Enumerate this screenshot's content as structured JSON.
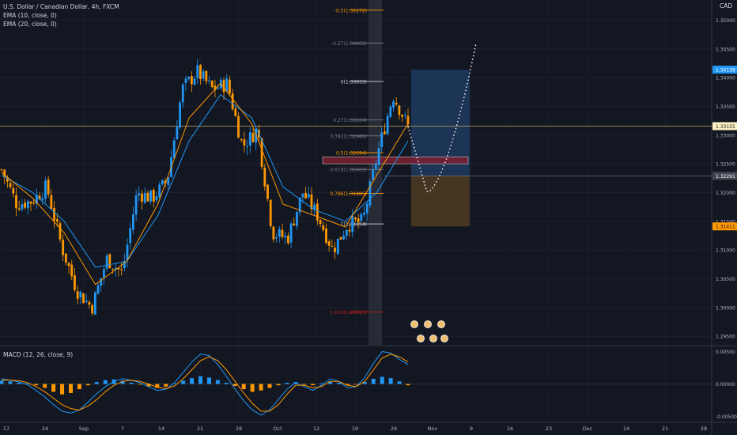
{
  "symbol_title": "U.S. Dollar / Canadian Dollar, 4h, FXCM",
  "indicators": [
    "EMA (10, close, 0)",
    "EMA (20, close, 0)"
  ],
  "currency": "CAD",
  "macd_title": "MACD (12, 26, close, 9)",
  "colors": {
    "background": "#131722",
    "up_candle": "#2196f3",
    "down_candle": "#ff9800",
    "ema10": "#ff9800",
    "ema20": "#2196f3",
    "price_line": "#c8a95c",
    "fib_top": "#ff9800",
    "fib_mid": "#787b86",
    "fib_bottom": "#b71c1c",
    "target_box": "#1f3a5f",
    "stop_box": "#4a3a20",
    "resistance_box": "#7a2030"
  },
  "price_axis": {
    "ticks": [
      "1.35000",
      "1.34500",
      "1.34000",
      "1.33500",
      "1.33000",
      "1.32500",
      "1.32000",
      "1.31500",
      "1.31000",
      "1.30500",
      "1.30000",
      "1.29500"
    ],
    "current_price": "1.33155",
    "target_price": "1.34138",
    "entry_price": "1.32291",
    "stop_price": "1.31411"
  },
  "macd_axis": {
    "ticks": [
      "0.00500",
      "0.00000",
      "-0.00500"
    ]
  },
  "time_axis": {
    "labels": [
      "17",
      "24",
      "Sep",
      "7",
      "14",
      "21",
      "28",
      "Oct",
      "12",
      "19",
      "26",
      "Nov",
      "9",
      "16",
      "23",
      "Dec",
      "14",
      "21",
      "28"
    ]
  },
  "fib_levels": [
    {
      "label": "-0.5(1.35172)",
      "price": 1.35172,
      "tone": "top"
    },
    {
      "label": "-0.27(1.34602)",
      "price": 1.34602,
      "tone": "mid"
    },
    {
      "label": "0(1.33933)",
      "price": 1.33933,
      "tone": "white"
    },
    {
      "label": "0.27(1.33264)",
      "price": 1.33264,
      "tone": "mid"
    },
    {
      "label": "0.382(1.32986)",
      "price": 1.32986,
      "tone": "mid"
    },
    {
      "label": "0.5(1.32694)",
      "price": 1.32694,
      "tone": "top"
    },
    {
      "label": "0.618(1.32402)",
      "price": 1.32402,
      "tone": "mid"
    },
    {
      "label": "0.786(1.31985)",
      "price": 1.31985,
      "tone": "top"
    },
    {
      "label": "1(1.31454)",
      "price": 1.31454,
      "tone": "white"
    },
    {
      "label": "1.618(1.29923)",
      "price": 1.29923,
      "tone": "bottom"
    }
  ],
  "chart_data": {
    "type": "candlestick",
    "ylim": [
      1.2935,
      1.3535
    ],
    "close_series": [
      {
        "date": "Aug 13",
        "close": 1.324
      },
      {
        "date": "Aug 17",
        "close": 1.318
      },
      {
        "date": "Aug 21",
        "close": 1.3185
      },
      {
        "date": "Aug 24",
        "close": 1.321
      },
      {
        "date": "Aug 27",
        "close": 1.3105
      },
      {
        "date": "Aug 31",
        "close": 1.303
      },
      {
        "date": "Sep 3",
        "close": 1.3
      },
      {
        "date": "Sep 7",
        "close": 1.3085
      },
      {
        "date": "Sep 11",
        "close": 1.306
      },
      {
        "date": "Sep 14",
        "close": 1.32
      },
      {
        "date": "Sep 18",
        "close": 1.319
      },
      {
        "date": "Sep 21",
        "close": 1.322
      },
      {
        "date": "Sep 24",
        "close": 1.338
      },
      {
        "date": "Sep 26",
        "close": 1.341
      },
      {
        "date": "Sep 28",
        "close": 1.338
      },
      {
        "date": "Oct 1",
        "close": 1.339
      },
      {
        "date": "Oct 5",
        "close": 1.328
      },
      {
        "date": "Oct 9",
        "close": 1.331
      },
      {
        "date": "Oct 12",
        "close": 1.313
      },
      {
        "date": "Oct 16",
        "close": 1.312
      },
      {
        "date": "Oct 19",
        "close": 1.32
      },
      {
        "date": "Oct 22",
        "close": 1.316
      },
      {
        "date": "Oct 23",
        "close": 1.31
      },
      {
        "date": "Oct 26",
        "close": 1.3145
      },
      {
        "date": "Oct 29",
        "close": 1.315
      },
      {
        "date": "Oct 30",
        "close": 1.327
      },
      {
        "date": "Nov 1",
        "close": 1.337
      },
      {
        "date": "Nov 2",
        "close": 1.3315
      }
    ],
    "ema10": [
      {
        "date": "Aug 13",
        "v": 1.3235
      },
      {
        "date": "Aug 21",
        "v": 1.319
      },
      {
        "date": "Aug 27",
        "v": 1.313
      },
      {
        "date": "Sep 3",
        "v": 1.304
      },
      {
        "date": "Sep 11",
        "v": 1.308
      },
      {
        "date": "Sep 18",
        "v": 1.318
      },
      {
        "date": "Sep 24",
        "v": 1.333
      },
      {
        "date": "Sep 28",
        "v": 1.339
      },
      {
        "date": "Oct 5",
        "v": 1.332
      },
      {
        "date": "Oct 12",
        "v": 1.318
      },
      {
        "date": "Oct 19",
        "v": 1.316
      },
      {
        "date": "Oct 26",
        "v": 1.314
      },
      {
        "date": "Oct 30",
        "v": 1.323
      },
      {
        "date": "Nov 2",
        "v": 1.332
      }
    ],
    "ema20": [
      {
        "date": "Aug 13",
        "v": 1.323
      },
      {
        "date": "Aug 21",
        "v": 1.32
      },
      {
        "date": "Aug 27",
        "v": 1.315
      },
      {
        "date": "Sep 3",
        "v": 1.307
      },
      {
        "date": "Sep 11",
        "v": 1.308
      },
      {
        "date": "Sep 18",
        "v": 1.316
      },
      {
        "date": "Sep 24",
        "v": 1.329
      },
      {
        "date": "Sep 28",
        "v": 1.337
      },
      {
        "date": "Oct 5",
        "v": 1.333
      },
      {
        "date": "Oct 12",
        "v": 1.321
      },
      {
        "date": "Oct 19",
        "v": 1.317
      },
      {
        "date": "Oct 26",
        "v": 1.315
      },
      {
        "date": "Oct 30",
        "v": 1.32
      },
      {
        "date": "Nov 2",
        "v": 1.329
      }
    ],
    "macd_hist": [
      0.0005,
      0.0004,
      0.0002,
      0.0001,
      -0.0002,
      -0.0006,
      -0.0012,
      -0.0016,
      -0.0014,
      -0.0008,
      -0.0002,
      0.0003,
      0.0006,
      0.0007,
      0.0005,
      0.0002,
      -0.0001,
      -0.0004,
      -0.0006,
      -0.0004,
      0.0001,
      0.0005,
      0.0009,
      0.0012,
      0.001,
      0.0006,
      0.0002,
      -0.0003,
      -0.0008,
      -0.0012,
      -0.001,
      -0.0006,
      -0.0002,
      0.0002,
      0.0003,
      -0.0001,
      -0.0002,
      0.0001,
      0.0004,
      0.0002,
      -0.0002,
      -0.0001,
      0.0003,
      0.0008,
      0.0011,
      0.0009,
      0.0004,
      -0.0002
    ],
    "macd_line": [
      0.0008,
      0.0006,
      0.0003,
      -0.0001,
      -0.001,
      -0.002,
      -0.0032,
      -0.0042,
      -0.0045,
      -0.004,
      -0.0028,
      -0.0015,
      -0.0004,
      0.0004,
      0.0008,
      0.0006,
      0.0002,
      -0.0004,
      -0.001,
      -0.0008,
      0.0002,
      0.0018,
      0.0034,
      0.0046,
      0.0044,
      0.003,
      0.0012,
      -0.0008,
      -0.0026,
      -0.004,
      -0.0048,
      -0.004,
      -0.0024,
      -0.0008,
      0.0002,
      -0.0004,
      -0.001,
      -0.0002,
      0.0008,
      0.0004,
      -0.0006,
      -0.0004,
      0.001,
      0.0032,
      0.005,
      0.0048,
      0.0038,
      0.003
    ],
    "signal_line": [
      0.0006,
      0.0006,
      0.0005,
      0.0002,
      -0.0004,
      -0.0012,
      -0.0022,
      -0.0032,
      -0.0038,
      -0.004,
      -0.0034,
      -0.0024,
      -0.0012,
      -0.0002,
      0.0004,
      0.0006,
      0.0004,
      0.0,
      -0.0005,
      -0.0007,
      -0.0003,
      0.0008,
      0.0022,
      0.0036,
      0.0042,
      0.0036,
      0.0022,
      0.0004,
      -0.0014,
      -0.003,
      -0.0042,
      -0.0042,
      -0.0032,
      -0.0016,
      -0.0002,
      -0.0002,
      -0.0006,
      -0.0004,
      0.0004,
      0.0004,
      -0.0002,
      -0.0004,
      0.0004,
      0.0022,
      0.004,
      0.0046,
      0.0042,
      0.0034
    ],
    "macd_ylim": [
      -0.0058,
      0.0058
    ]
  }
}
